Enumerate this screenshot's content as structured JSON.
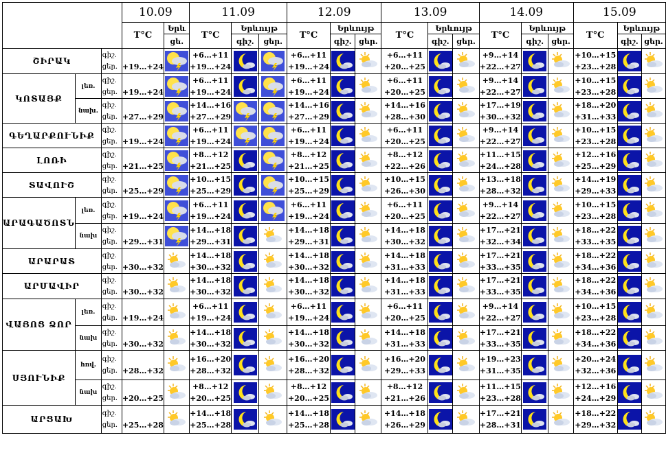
{
  "header": {
    "dates": [
      "10.09",
      "11.09",
      "12.09",
      "13.09",
      "14.09",
      "15.09"
    ],
    "tc_label": "T°C",
    "weather_labels": [
      "Երև",
      "Երևույթ",
      "Երևույթ",
      "Երևույթ",
      "Երևույթ",
      "Երևույթ"
    ],
    "day_short": "ցե.",
    "night_label": "գիշ.",
    "day_label": "ցեր."
  },
  "rows": [
    {
      "region": "ՇԻՐԱԿ",
      "zone": "",
      "temps": [
        [
          "+19…+24"
        ],
        [
          "+6…+11",
          "+19…+24"
        ],
        [
          "+6…+11",
          "+19…+24"
        ],
        [
          "+6…+11",
          "+20…+25"
        ],
        [
          "+9…+14",
          "+22…+27"
        ],
        [
          "+10…+15",
          "+23…+28"
        ]
      ],
      "icons": [
        [
          "storm"
        ],
        [
          "moon",
          "storm"
        ],
        [
          "moon",
          "sun"
        ],
        [
          "moon",
          "sun"
        ],
        [
          "moon",
          "sun"
        ],
        [
          "moon",
          "sun"
        ]
      ]
    },
    {
      "region": "ԿՈՏԱՅՔ",
      "zone": "լեռ.",
      "temps": [
        [
          "+19…+24"
        ],
        [
          "+6…+11",
          "+19…+24"
        ],
        [
          "+6…+11",
          "+19…+24"
        ],
        [
          "+6…+11",
          "+20…+25"
        ],
        [
          "+9…+14",
          "+22…+27"
        ],
        [
          "+10…+15",
          "+23…+28"
        ]
      ],
      "icons": [
        [
          "storm"
        ],
        [
          "moon",
          "storm"
        ],
        [
          "moon",
          "sun"
        ],
        [
          "moon",
          "sun"
        ],
        [
          "moon",
          "sun"
        ],
        [
          "moon",
          "sun"
        ]
      ]
    },
    {
      "region": "",
      "zone": "նախ.",
      "temps": [
        [
          "+27…+29"
        ],
        [
          "+14…+16",
          "+27…+29"
        ],
        [
          "+14…+16",
          "+27…+29"
        ],
        [
          "+14…+16",
          "+28…+30"
        ],
        [
          "+17…+19",
          "+30…+32"
        ],
        [
          "+18…+20",
          "+31…+33"
        ]
      ],
      "icons": [
        [
          "storm"
        ],
        [
          "storm",
          "storm"
        ],
        [
          "moon",
          "sun"
        ],
        [
          "moon",
          "sun"
        ],
        [
          "moon",
          "sun"
        ],
        [
          "moon",
          "sun"
        ]
      ]
    },
    {
      "region": "ԳԵՂԱՐՔՈՒՆԻՔ",
      "zone": "",
      "temps": [
        [
          "+19…+24"
        ],
        [
          "+6…+11",
          "+19…+24"
        ],
        [
          "+6…+11",
          "+19…+24"
        ],
        [
          "+6…+11",
          "+20…+25"
        ],
        [
          "+9…+14",
          "+22…+27"
        ],
        [
          "+10…+15",
          "+23…+28"
        ]
      ],
      "icons": [
        [
          "storm"
        ],
        [
          "storm",
          "storm"
        ],
        [
          "moon",
          "sun"
        ],
        [
          "moon",
          "sun"
        ],
        [
          "moon",
          "sun"
        ],
        [
          "moon",
          "sun"
        ]
      ]
    },
    {
      "region": "ԼՈՌԻ",
      "zone": "",
      "temps": [
        [
          "+21…+25"
        ],
        [
          "+8…+12",
          "+21…+25"
        ],
        [
          "+8…+12",
          "+21…+25"
        ],
        [
          "+8…+12",
          "+22…+26"
        ],
        [
          "+11…+15",
          "+24…+28"
        ],
        [
          "+12…+16",
          "+25…+29"
        ]
      ],
      "icons": [
        [
          "storm"
        ],
        [
          "moon",
          "storm"
        ],
        [
          "moon",
          "sun"
        ],
        [
          "moon",
          "sun"
        ],
        [
          "moon",
          "sun"
        ],
        [
          "moon",
          "sun"
        ]
      ]
    },
    {
      "region": "ՏԱՎՈՒՇ",
      "zone": "",
      "temps": [
        [
          "+25…+29"
        ],
        [
          "+10…+15",
          "+25…+29"
        ],
        [
          "+10…+15",
          "+25…+29"
        ],
        [
          "+10…+15",
          "+26…+30"
        ],
        [
          "+13…+18",
          "+28…+32"
        ],
        [
          "+14…+19",
          "+29…+33"
        ]
      ],
      "icons": [
        [
          "storm"
        ],
        [
          "moon",
          "storm"
        ],
        [
          "moon",
          "sun"
        ],
        [
          "moon",
          "sun"
        ],
        [
          "moon",
          "sun"
        ],
        [
          "moon",
          "sun"
        ]
      ]
    },
    {
      "region": "ԱՐԱԳԱԾՈՏՆ",
      "zone": "լեռ.",
      "temps": [
        [
          "+19…+24"
        ],
        [
          "+6…+11",
          "+19…+24"
        ],
        [
          "+6…+11",
          "+19…+24"
        ],
        [
          "+6…+11",
          "+20…+25"
        ],
        [
          "+9…+14",
          "+22…+27"
        ],
        [
          "+10…+15",
          "+23…+28"
        ]
      ],
      "icons": [
        [
          "storm"
        ],
        [
          "moon",
          "storm"
        ],
        [
          "moon",
          "sun"
        ],
        [
          "moon",
          "sun"
        ],
        [
          "moon",
          "sun"
        ],
        [
          "moon",
          "sun"
        ]
      ]
    },
    {
      "region": "",
      "zone": "նախ",
      "temps": [
        [
          "+29…+31"
        ],
        [
          "+14…+18",
          "+29…+31"
        ],
        [
          "+14…+18",
          "+29…+31"
        ],
        [
          "+14…+18",
          "+30…+32"
        ],
        [
          "+17…+21",
          "+32…+34"
        ],
        [
          "+18…+22",
          "+33…+35"
        ]
      ],
      "icons": [
        [
          "storm"
        ],
        [
          "moon",
          "sun"
        ],
        [
          "moon",
          "sun"
        ],
        [
          "moon",
          "sun"
        ],
        [
          "moon",
          "sun"
        ],
        [
          "moon",
          "sun"
        ]
      ]
    },
    {
      "region": "ԱՐԱՐԱՏ",
      "zone": "",
      "temps": [
        [
          "+30…+32"
        ],
        [
          "+14…+18",
          "+30…+32"
        ],
        [
          "+14…+18",
          "+30…+32"
        ],
        [
          "+14…+18",
          "+31…+33"
        ],
        [
          "+17…+21",
          "+33…+35"
        ],
        [
          "+18…+22",
          "+34…+36"
        ]
      ],
      "icons": [
        [
          "sun"
        ],
        [
          "moon",
          "sun"
        ],
        [
          "moon",
          "sun"
        ],
        [
          "moon",
          "sun"
        ],
        [
          "moon",
          "sun"
        ],
        [
          "moon",
          "sun"
        ]
      ]
    },
    {
      "region": "ԱՐՄԱՎԻՐ",
      "zone": "",
      "temps": [
        [
          "+30…+32"
        ],
        [
          "+14…+18",
          "+30…+32"
        ],
        [
          "+14…+18",
          "+30…+32"
        ],
        [
          "+14…+18",
          "+31…+33"
        ],
        [
          "+17…+21",
          "+33…+35"
        ],
        [
          "+18…+22",
          "+34…+36"
        ]
      ],
      "icons": [
        [
          "sun"
        ],
        [
          "moon",
          "sun"
        ],
        [
          "moon",
          "sun"
        ],
        [
          "moon",
          "sun"
        ],
        [
          "moon",
          "sun"
        ],
        [
          "moon",
          "sun"
        ]
      ]
    },
    {
      "region": "ՎԱՅՈՑ ՁՈՐ",
      "zone": "լեռ.",
      "temps": [
        [
          "+19…+24"
        ],
        [
          "+6…+11",
          "+19…+24"
        ],
        [
          "+6…+11",
          "+19…+24"
        ],
        [
          "+6…+11",
          "+20…+25"
        ],
        [
          "+9…+14",
          "+22…+27"
        ],
        [
          "+10…+15",
          "+23…+28"
        ]
      ],
      "icons": [
        [
          "sun"
        ],
        [
          "moon",
          "sun"
        ],
        [
          "moon",
          "sun"
        ],
        [
          "moon",
          "sun"
        ],
        [
          "moon",
          "sun"
        ],
        [
          "moon",
          "sun"
        ]
      ]
    },
    {
      "region": "",
      "zone": "նախ",
      "temps": [
        [
          "+30…+32"
        ],
        [
          "+14…+18",
          "+30…+32"
        ],
        [
          "+14…+18",
          "+30…+32"
        ],
        [
          "+14…+18",
          "+31…+33"
        ],
        [
          "+17…+21",
          "+33…+35"
        ],
        [
          "+18…+22",
          "+34…+36"
        ]
      ],
      "icons": [
        [
          "sun"
        ],
        [
          "moon",
          "sun"
        ],
        [
          "moon",
          "sun"
        ],
        [
          "moon",
          "sun"
        ],
        [
          "moon",
          "sun"
        ],
        [
          "moon",
          "sun"
        ]
      ]
    },
    {
      "region": "ՍՅՈՒՆԻՔ",
      "zone": "հով.",
      "temps": [
        [
          "+28…+32"
        ],
        [
          "+16…+20",
          "+28…+32"
        ],
        [
          "+16…+20",
          "+28…+32"
        ],
        [
          "+16…+20",
          "+29…+33"
        ],
        [
          "+19…+23",
          "+31…+35"
        ],
        [
          "+20…+24",
          "+32…+36"
        ]
      ],
      "icons": [
        [
          "sun"
        ],
        [
          "moon",
          "sun"
        ],
        [
          "moon",
          "sun"
        ],
        [
          "moon",
          "sun"
        ],
        [
          "moon",
          "sun"
        ],
        [
          "moon",
          "sun"
        ]
      ]
    },
    {
      "region": "",
      "zone": "նախ",
      "temps": [
        [
          "+20…+25"
        ],
        [
          "+8…+12",
          "+20…+25"
        ],
        [
          "+8…+12",
          "+20…+25"
        ],
        [
          "+8…+12",
          "+21…+26"
        ],
        [
          "+11…+15",
          "+23…+28"
        ],
        [
          "+12…+16",
          "+24…+29"
        ]
      ],
      "icons": [
        [
          "sun"
        ],
        [
          "moon",
          "sun"
        ],
        [
          "moon",
          "sun"
        ],
        [
          "moon",
          "sun"
        ],
        [
          "moon",
          "sun"
        ],
        [
          "moon",
          "sun"
        ]
      ]
    },
    {
      "region": "ԱՐՑԱԽ",
      "zone": "",
      "temps": [
        [
          "+25…+28"
        ],
        [
          "+14…+18",
          "+25…+28"
        ],
        [
          "+14…+18",
          "+25…+28"
        ],
        [
          "+14…+18",
          "+26…+29"
        ],
        [
          "+17…+21",
          "+28…+31"
        ],
        [
          "+18…+22",
          "+29…+32"
        ]
      ],
      "icons": [
        [
          "sun"
        ],
        [
          "moon",
          "sun"
        ],
        [
          "moon",
          "sun"
        ],
        [
          "moon",
          "sun"
        ],
        [
          "moon",
          "sun"
        ],
        [
          "moon",
          "sun"
        ]
      ]
    }
  ]
}
